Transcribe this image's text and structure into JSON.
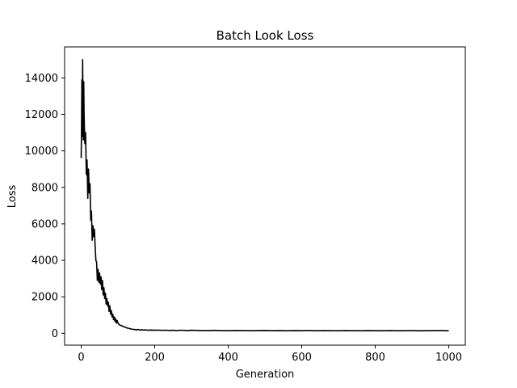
{
  "chart_data": {
    "type": "line",
    "title": "Batch Look Loss",
    "xlabel": "Generation",
    "ylabel": "Loss",
    "xlim": [
      -45,
      1045
    ],
    "ylim": [
      -650,
      15700
    ],
    "xticks": [
      0,
      200,
      400,
      600,
      800,
      1000
    ],
    "yticks": [
      0,
      2000,
      4000,
      6000,
      8000,
      10000,
      12000,
      14000
    ],
    "grid": false,
    "legend": "none",
    "line_color": "#000000",
    "series": [
      {
        "x": [
          0,
          1,
          2,
          3,
          4,
          5,
          6,
          7,
          8,
          10,
          12,
          14,
          16,
          18,
          20,
          22,
          24,
          26,
          28,
          30,
          32,
          34,
          36,
          38,
          40,
          42,
          44,
          46,
          48,
          50,
          52,
          54,
          56,
          58,
          60,
          62,
          64,
          66,
          68,
          70,
          72,
          74,
          76,
          78,
          80,
          82,
          84,
          86,
          88,
          90,
          92,
          94,
          96,
          98,
          100,
          105,
          110,
          115,
          120,
          125,
          130,
          135,
          140,
          145,
          150,
          155,
          160,
          165,
          170,
          175,
          180,
          190,
          200,
          210,
          220,
          230,
          240,
          250,
          260,
          270,
          280,
          290,
          300,
          320,
          340,
          360,
          380,
          400,
          420,
          440,
          460,
          480,
          500,
          520,
          540,
          560,
          580,
          600,
          620,
          640,
          660,
          680,
          700,
          720,
          740,
          760,
          780,
          800,
          820,
          840,
          860,
          880,
          900,
          920,
          940,
          960,
          980,
          1000
        ],
        "y": [
          9600,
          11200,
          13900,
          10800,
          15000,
          12500,
          10600,
          13800,
          11900,
          10400,
          11000,
          8700,
          9500,
          7400,
          9000,
          7700,
          8200,
          6200,
          6700,
          5100,
          5900,
          5300,
          5700,
          4800,
          4000,
          3900,
          2900,
          3500,
          2800,
          3300,
          2700,
          3100,
          2400,
          2900,
          2100,
          2500,
          1900,
          2200,
          1600,
          1900,
          1500,
          1700,
          1200,
          1500,
          1050,
          1250,
          900,
          1050,
          750,
          900,
          650,
          800,
          560,
          700,
          560,
          450,
          420,
          370,
          330,
          290,
          270,
          240,
          220,
          210,
          190,
          210,
          180,
          195,
          175,
          190,
          170,
          180,
          165,
          175,
          160,
          170,
          155,
          165,
          150,
          170,
          160,
          150,
          165,
          155,
          150,
          160,
          150,
          145,
          155,
          150,
          145,
          150,
          155,
          145,
          150,
          140,
          150,
          145,
          155,
          140,
          150,
          145,
          140,
          150,
          145,
          140,
          150,
          145,
          140,
          150,
          140,
          145,
          150,
          140,
          145,
          150,
          150,
          140
        ]
      }
    ]
  }
}
